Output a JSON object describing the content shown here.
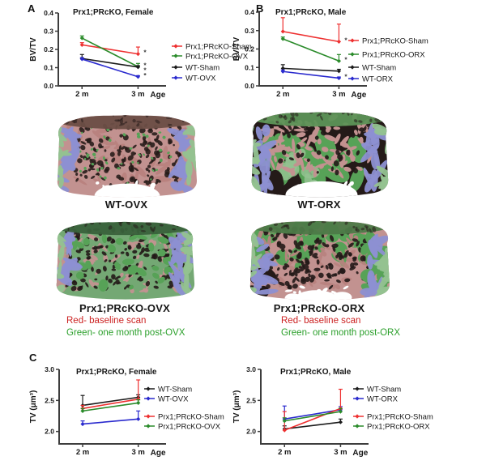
{
  "figure": {
    "panels": {
      "a": "A",
      "b": "B",
      "c": "C"
    }
  },
  "chart_data": [
    {
      "id": "bvtv_female",
      "type": "line",
      "title": "Prx1;PRcKO, Female",
      "ylabel": "BV/TV",
      "xlabel": "Age",
      "categories": [
        "2 m",
        "3 m"
      ],
      "ylim": [
        0.0,
        0.4
      ],
      "yticks": [
        "0.0",
        "0.1",
        "0.2",
        "0.3",
        "0.4"
      ],
      "grid": false,
      "legend_position": "right",
      "series": [
        {
          "name": "Prx1;PRcKO-Sham",
          "color": "#ee3030",
          "values": [
            0.225,
            0.175
          ],
          "err": [
            0.012,
            0.038
          ],
          "sig": [
            "",
            "*"
          ]
        },
        {
          "name": "Prx1;PRcKO-OVX",
          "color": "#2a8b2a",
          "values": [
            0.262,
            0.105
          ],
          "err": [
            0.012,
            0.018
          ],
          "sig": [
            "",
            "**"
          ]
        },
        {
          "name": "WT-Sham",
          "color": "#1b1b1b",
          "values": [
            0.15,
            0.103
          ],
          "err": [
            0.022,
            0.008
          ],
          "sig": [
            "",
            ""
          ]
        },
        {
          "name": "WT-OVX",
          "color": "#2a2ace",
          "values": [
            0.147,
            0.05
          ],
          "err": [
            0.008,
            0.006
          ],
          "sig": [
            "",
            "*"
          ]
        }
      ]
    },
    {
      "id": "bvtv_male",
      "type": "line",
      "title": "Prx1;PRcKO, Male",
      "ylabel": "BV/TV",
      "xlabel": "Age",
      "categories": [
        "2 m",
        "3 m"
      ],
      "ylim": [
        0.0,
        0.4
      ],
      "yticks": [
        "0.0",
        "0.1",
        "0.2",
        "0.3",
        "0.4"
      ],
      "grid": false,
      "legend_position": "right",
      "series": [
        {
          "name": "Prx1;PRcKO-Sham",
          "color": "#ee3030",
          "values": [
            0.295,
            0.24
          ],
          "err": [
            0.075,
            0.095
          ],
          "sig": [
            "",
            "*"
          ]
        },
        {
          "name": "Prx1;PRcKO-ORX",
          "color": "#2a8b2a",
          "values": [
            0.255,
            0.135
          ],
          "err": [
            0.01,
            0.035
          ],
          "sig": [
            "",
            "*"
          ]
        },
        {
          "name": "WT-Sham",
          "color": "#1b1b1b",
          "values": [
            0.095,
            0.08
          ],
          "err": [
            0.02,
            0.01
          ],
          "sig": [
            "",
            ""
          ]
        },
        {
          "name": "WT-ORX",
          "color": "#2a2ace",
          "values": [
            0.078,
            0.042
          ],
          "err": [
            0.008,
            0.006
          ],
          "sig": [
            "",
            "*"
          ]
        }
      ]
    },
    {
      "id": "tv_female",
      "type": "line",
      "title": "Prx1;PRcKO, Female",
      "ylabel": "TV (μm³)",
      "xlabel": "Age",
      "categories": [
        "2 m",
        "3 m"
      ],
      "ylim": [
        1.8,
        3.0
      ],
      "yticks": [
        "2.0",
        "2.5",
        "3.0"
      ],
      "grid": false,
      "legend_position": "right",
      "series": [
        {
          "name": "WT-Sham",
          "color": "#1b1b1b",
          "values": [
            2.42,
            2.55
          ],
          "err": [
            0.16,
            0.04
          ],
          "sig": [
            "",
            ""
          ]
        },
        {
          "name": "WT-OVX",
          "color": "#2a2ace",
          "values": [
            2.12,
            2.2
          ],
          "err": [
            0.05,
            0.13
          ],
          "sig": [
            "",
            ""
          ]
        },
        {
          "name": "Prx1;PRcKO-Sham",
          "color": "#ee3030",
          "values": [
            2.37,
            2.52
          ],
          "err": [
            0.05,
            0.31
          ],
          "sig": [
            "",
            ""
          ]
        },
        {
          "name": "Prx1;PRcKO-OVX",
          "color": "#2a8b2a",
          "values": [
            2.33,
            2.46
          ],
          "err": [
            0.04,
            0.05
          ],
          "sig": [
            "",
            ""
          ]
        }
      ]
    },
    {
      "id": "tv_male",
      "type": "line",
      "title": "Prx1;PRcKO, Male",
      "ylabel": "TV (μm³)",
      "xlabel": "Age",
      "categories": [
        "2 m",
        "3 m"
      ],
      "ylim": [
        1.8,
        3.0
      ],
      "yticks": [
        "2.0",
        "2.5",
        "3.0"
      ],
      "grid": false,
      "legend_position": "right",
      "series": [
        {
          "name": "WT-Sham",
          "color": "#1b1b1b",
          "values": [
            2.04,
            2.15
          ],
          "err": [
            0.05,
            0.05
          ],
          "sig": [
            "",
            ""
          ]
        },
        {
          "name": "WT-ORX",
          "color": "#2a2ace",
          "values": [
            2.2,
            2.35
          ],
          "err": [
            0.21,
            0.05
          ],
          "sig": [
            "",
            ""
          ]
        },
        {
          "name": "Prx1;PRcKO-Sham",
          "color": "#ee3030",
          "values": [
            2.02,
            2.37
          ],
          "err": [
            0.3,
            0.31
          ],
          "sig": [
            "",
            ""
          ]
        },
        {
          "name": "Prx1;PRcKO-ORX",
          "color": "#2a8b2a",
          "values": [
            2.17,
            2.32
          ],
          "err": [
            0.05,
            0.05
          ],
          "sig": [
            "",
            ""
          ]
        }
      ]
    }
  ],
  "microct": {
    "images": [
      {
        "id": "wt_ovx",
        "label": "WT-OVX"
      },
      {
        "id": "wt_orx",
        "label": "WT-ORX"
      },
      {
        "id": "prcko_ovx",
        "label": "Prx1;PRcKO-OVX",
        "legend_red": "Red- baseline scan",
        "legend_green": "Green- one month post-OVX"
      },
      {
        "id": "prcko_orx",
        "label": "Prx1;PRcKO-ORX",
        "legend_red": "Red- baseline scan",
        "legend_green": "Green- one month post-ORX"
      }
    ],
    "palette": {
      "pink": "#c29290",
      "strand": "#b9827f",
      "dark": "#241a18",
      "green": "#57a257",
      "mid_green": "#74a874",
      "lgreen": "#93c290",
      "purple": "#8d90d2",
      "white": "#ffffff",
      "red_text": "#cc2222",
      "green_text": "#2ca02c"
    }
  }
}
